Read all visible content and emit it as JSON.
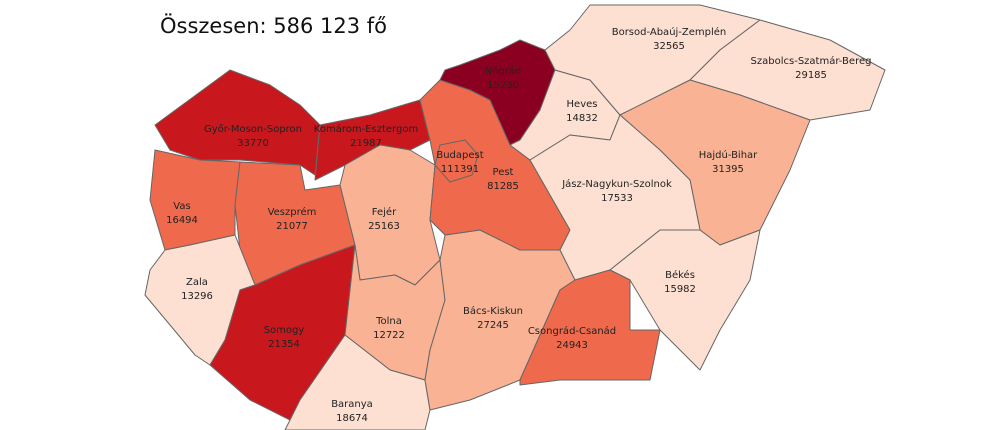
{
  "subtitle": "Összesen: 586 123 fő",
  "regions": [
    {
      "name": "Győr-Moson-Sopron",
      "value": 33770,
      "color": "#c8181e"
    },
    {
      "name": "Komárom-Esztergom",
      "value": 21987,
      "color": "#c8181e"
    },
    {
      "name": "Vas",
      "value": 16494,
      "color": "#ef6a4c"
    },
    {
      "name": "Veszprém",
      "value": 21077,
      "color": "#ef6a4c"
    },
    {
      "name": "Fejér",
      "value": 25163,
      "color": "#f9b394"
    },
    {
      "name": "Zala",
      "value": 13296,
      "color": "#fde0d2"
    },
    {
      "name": "Somogy",
      "value": 21354,
      "color": "#c8181e"
    },
    {
      "name": "Tolna",
      "value": 12722,
      "color": "#f9b394"
    },
    {
      "name": "Baranya",
      "value": 18674,
      "color": "#fde0d2"
    },
    {
      "name": "Bács-Kiskun",
      "value": 27245,
      "color": "#f9b394"
    },
    {
      "name": "Pest",
      "value": 81285,
      "color": "#ef6a4c"
    },
    {
      "name": "Budapest",
      "value": 111391,
      "color": "#ef6a4c"
    },
    {
      "name": "Nógrád",
      "value": 15230,
      "color": "#8b0020"
    },
    {
      "name": "Heves",
      "value": 14832,
      "color": "#fde0d2"
    },
    {
      "name": "Borsod-Abaúj-Zemplén",
      "value": 32565,
      "color": "#fde0d2"
    },
    {
      "name": "Szabolcs-Szatmár-Bereg",
      "value": 29185,
      "color": "#fde0d2"
    },
    {
      "name": "Hajdú-Bihar",
      "value": 31395,
      "color": "#f9b394"
    },
    {
      "name": "Jász-Nagykun-Szolnok",
      "value": 17533,
      "color": "#fde0d2"
    },
    {
      "name": "Békés",
      "value": 15982,
      "color": "#fde0d2"
    },
    {
      "name": "Csongrád-Csanád",
      "value": 24943,
      "color": "#ef6a4c"
    }
  ]
}
